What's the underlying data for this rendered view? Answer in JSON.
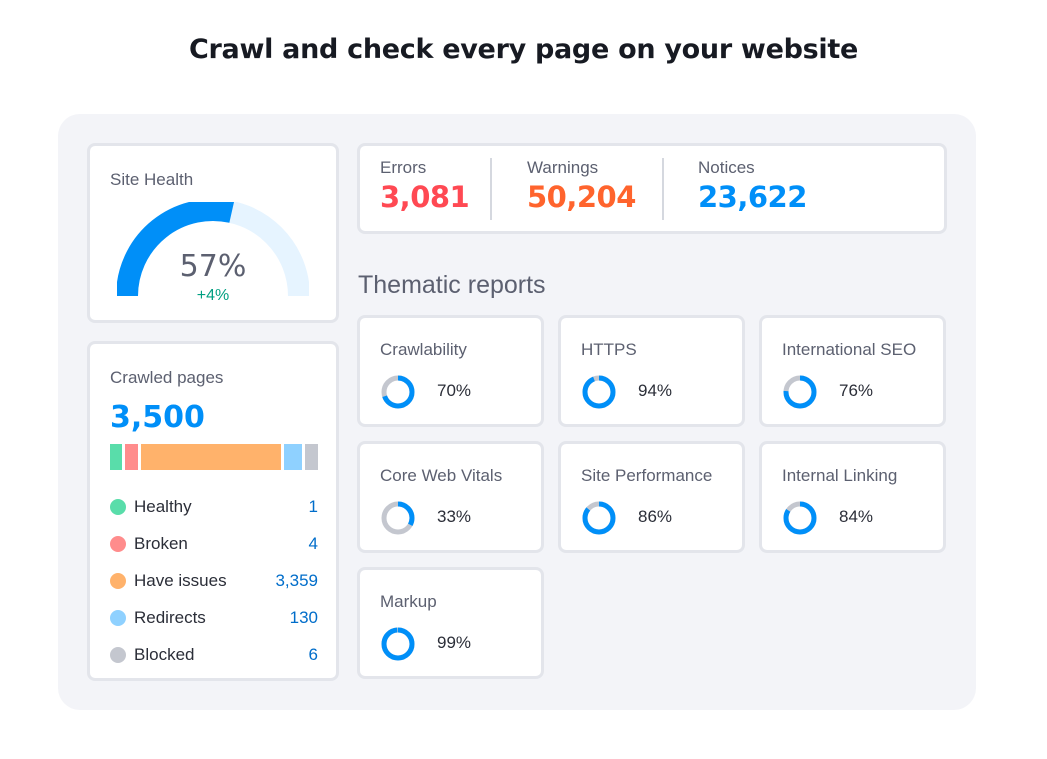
{
  "headline": "Crawl and check every page on your website",
  "colors": {
    "accent_blue": "#008ff8",
    "gauge_track": "#e6f4ff",
    "donut_track": "#c4c7cf",
    "error_red": "#ff4953",
    "warning_orange": "#ff642d",
    "notice_blue": "#008ff8",
    "positive_green": "#009f81"
  },
  "site_health": {
    "label": "Site Health",
    "value": "57%",
    "fraction": 0.57,
    "delta": "+4%"
  },
  "crawled_pages": {
    "label": "Crawled pages",
    "total": "3,500",
    "items": [
      {
        "name": "Healthy",
        "value": "1",
        "color": "#59ddaa",
        "bar_weight": 1
      },
      {
        "name": "Broken",
        "value": "4",
        "color": "#ff8c8c",
        "bar_weight": 1.1
      },
      {
        "name": "Have issues",
        "value": "3,359",
        "color": "#ffb26b",
        "bar_weight": 11.7
      },
      {
        "name": "Redirects",
        "value": "130",
        "color": "#8fd1ff",
        "bar_weight": 1.5
      },
      {
        "name": "Blocked",
        "value": "6",
        "color": "#c4c7cf",
        "bar_weight": 1.1
      }
    ]
  },
  "issues": [
    {
      "label": "Errors",
      "value": "3,081",
      "color": "#ff4953"
    },
    {
      "label": "Warnings",
      "value": "50,204",
      "color": "#ff642d"
    },
    {
      "label": "Notices",
      "value": "23,622",
      "color": "#008ff8"
    }
  ],
  "thematic": {
    "title": "Thematic reports",
    "reports": [
      {
        "name": "Crawlability",
        "value": "70%",
        "fraction": 0.7
      },
      {
        "name": "HTTPS",
        "value": "94%",
        "fraction": 0.94
      },
      {
        "name": "International SEO",
        "value": "76%",
        "fraction": 0.76
      },
      {
        "name": "Core Web Vitals",
        "value": "33%",
        "fraction": 0.33
      },
      {
        "name": "Site Performance",
        "value": "86%",
        "fraction": 0.86
      },
      {
        "name": "Internal Linking",
        "value": "84%",
        "fraction": 0.84
      },
      {
        "name": "Markup",
        "value": "99%",
        "fraction": 0.99
      }
    ]
  }
}
